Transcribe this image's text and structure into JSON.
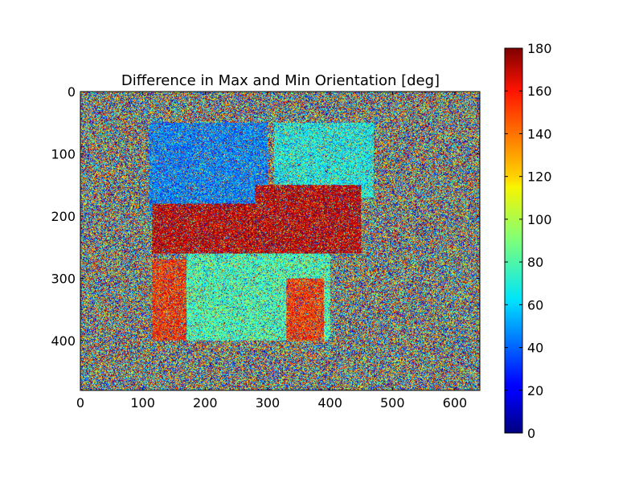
{
  "chart_data": {
    "type": "heatmap",
    "title": "Difference in Max and Min Orientation [deg]",
    "xlabel": "",
    "ylabel": "",
    "image_extent": {
      "width": 640,
      "height": 480
    },
    "xlim": [
      0,
      640
    ],
    "ylim": [
      480,
      0
    ],
    "x_ticks": [
      0,
      100,
      200,
      300,
      400,
      500,
      600
    ],
    "y_ticks": [
      0,
      100,
      200,
      300,
      400
    ],
    "colorbar": {
      "colormap": "jet",
      "range": [
        0,
        180
      ],
      "ticks": [
        0,
        20,
        40,
        60,
        80,
        100,
        120,
        140,
        160,
        180
      ]
    },
    "regions": [
      {
        "description": "background",
        "x": [
          0,
          640
        ],
        "y": [
          0,
          480
        ],
        "value": "uniform noise 0-180"
      },
      {
        "description": "upper-left object area",
        "x": [
          110,
          300
        ],
        "y": [
          50,
          200
        ],
        "approx_value": 45
      },
      {
        "description": "dark red/blue patch",
        "x": [
          115,
          310
        ],
        "y": [
          180,
          260
        ],
        "approx_value": 170
      },
      {
        "description": "orange region lower-left",
        "x": [
          115,
          230
        ],
        "y": [
          270,
          400
        ],
        "approx_value": 150
      },
      {
        "description": "green/cyan lower region",
        "x": [
          170,
          400
        ],
        "y": [
          260,
          400
        ],
        "approx_value": 80
      },
      {
        "description": "cyan upper-right region",
        "x": [
          310,
          470
        ],
        "y": [
          50,
          170
        ],
        "approx_value": 70
      },
      {
        "description": "dark red mixed patch",
        "x": [
          280,
          450
        ],
        "y": [
          150,
          260
        ],
        "approx_value": 170
      },
      {
        "description": "orange streak",
        "x": [
          330,
          390
        ],
        "y": [
          300,
          400
        ],
        "approx_value": 150
      }
    ]
  }
}
